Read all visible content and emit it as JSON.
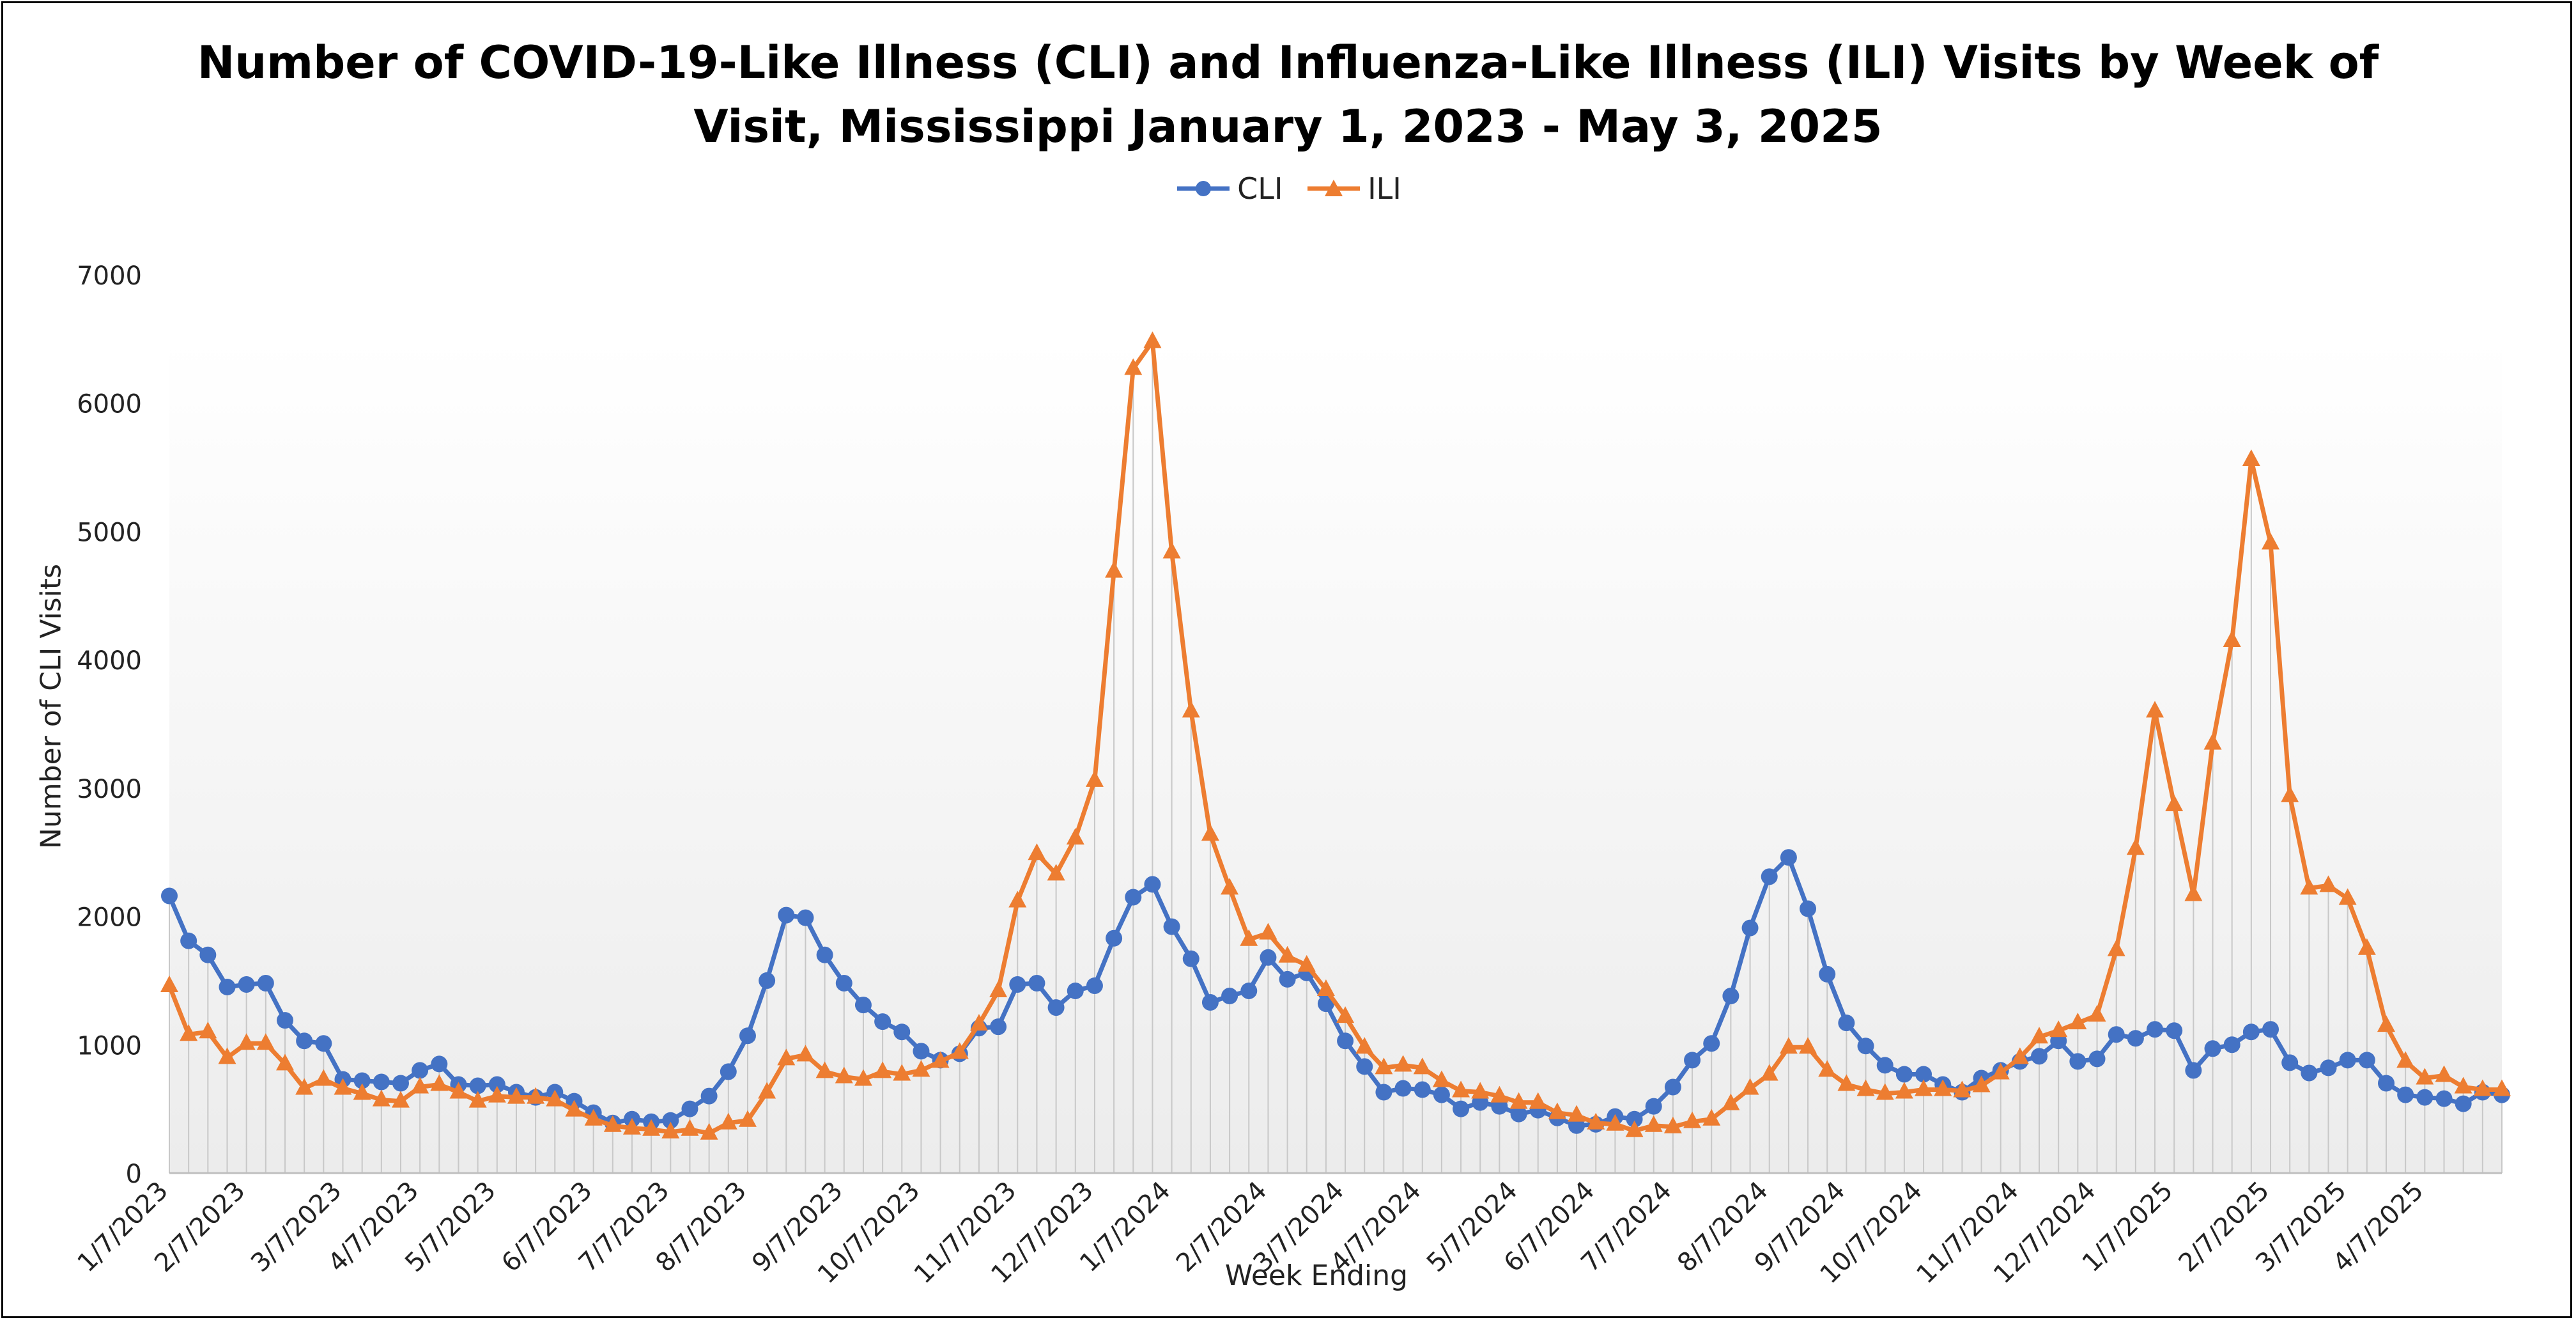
{
  "chart_data": {
    "type": "line",
    "title": "Number of COVID-19-Like Illness (CLI) and Influenza-Like Illness (ILI) Visits by Week of Visit, Mississippi January 1, 2023 - May 3, 2025",
    "title_lines": [
      "Number of COVID-19-Like Illness (CLI) and Influenza-Like Illness (ILI) Visits by Week of",
      "Visit, Mississippi January 1, 2023 - May 3, 2025"
    ],
    "xlabel": "Week Ending",
    "ylabel": "Number of CLI Visits",
    "ylim": [
      0,
      7000
    ],
    "yticks": [
      0,
      1000,
      2000,
      3000,
      4000,
      5000,
      6000,
      7000
    ],
    "xtick_labels": [
      "1/7/2023",
      "2/7/2023",
      "3/7/2023",
      "4/7/2023",
      "5/7/2023",
      "6/7/2023",
      "7/7/2023",
      "8/7/2023",
      "9/7/2023",
      "10/7/2023",
      "11/7/2023",
      "12/7/2023",
      "1/7/2024",
      "2/7/2024",
      "3/7/2024",
      "4/7/2024",
      "5/7/2024",
      "6/7/2024",
      "7/7/2024",
      "8/7/2024",
      "9/7/2024",
      "10/7/2024",
      "11/7/2024",
      "12/7/2024",
      "1/7/2025",
      "2/7/2025",
      "3/7/2025",
      "4/7/2025"
    ],
    "legend_position": "top-center",
    "grid": "vertical drop lines",
    "series": [
      {
        "name": "CLI",
        "color": "#4472C4",
        "marker": "circle",
        "values": [
          2160,
          1810,
          1700,
          1450,
          1470,
          1480,
          1190,
          1030,
          1010,
          730,
          720,
          710,
          700,
          800,
          850,
          690,
          680,
          690,
          630,
          590,
          630,
          560,
          470,
          390,
          420,
          400,
          410,
          500,
          600,
          790,
          1070,
          1500,
          2010,
          1990,
          1700,
          1480,
          1310,
          1180,
          1100,
          950,
          880,
          930,
          1130,
          1140,
          1470,
          1480,
          1290,
          1420,
          1460,
          1830,
          2150,
          2250,
          1920,
          1670,
          1330,
          1380,
          1420,
          1680,
          1510,
          1560,
          1320,
          1030,
          830,
          630,
          660,
          650,
          610,
          500,
          550,
          520,
          460,
          490,
          430,
          370,
          380,
          440,
          420,
          520,
          670,
          880,
          1010,
          1380,
          1910,
          2310,
          2460,
          2060,
          1550,
          1170,
          990,
          840,
          770,
          770,
          690,
          630,
          740,
          800,
          870,
          910,
          1030,
          870,
          890,
          1080,
          1050,
          1120,
          1110,
          800,
          970,
          1000,
          1100,
          1120,
          860,
          780,
          820,
          880,
          880,
          700,
          610,
          590,
          580,
          540,
          630,
          610
        ]
      },
      {
        "name": "ILI",
        "color": "#ED7D31",
        "marker": "triangle",
        "values": [
          1460,
          1080,
          1100,
          900,
          1010,
          1010,
          850,
          660,
          730,
          660,
          620,
          570,
          560,
          670,
          690,
          630,
          560,
          600,
          590,
          590,
          570,
          490,
          420,
          370,
          350,
          340,
          320,
          340,
          310,
          390,
          410,
          630,
          890,
          920,
          790,
          750,
          730,
          790,
          770,
          800,
          870,
          940,
          1160,
          1420,
          2120,
          2490,
          2330,
          2610,
          3060,
          4690,
          6270,
          6480,
          4840,
          3600,
          2640,
          2220,
          1820,
          1870,
          1690,
          1620,
          1430,
          1220,
          980,
          820,
          840,
          820,
          720,
          640,
          630,
          600,
          550,
          550,
          470,
          450,
          390,
          380,
          330,
          370,
          360,
          400,
          420,
          540,
          660,
          770,
          980,
          980,
          800,
          690,
          650,
          620,
          630,
          650,
          650,
          640,
          680,
          780,
          900,
          1060,
          1110,
          1170,
          1230,
          1740,
          2530,
          3600,
          2870,
          2170,
          3350,
          4150,
          5560,
          4910,
          2940,
          2220,
          2240,
          2140,
          1750,
          1150,
          870,
          740,
          760,
          670,
          650,
          650
        ]
      }
    ]
  }
}
